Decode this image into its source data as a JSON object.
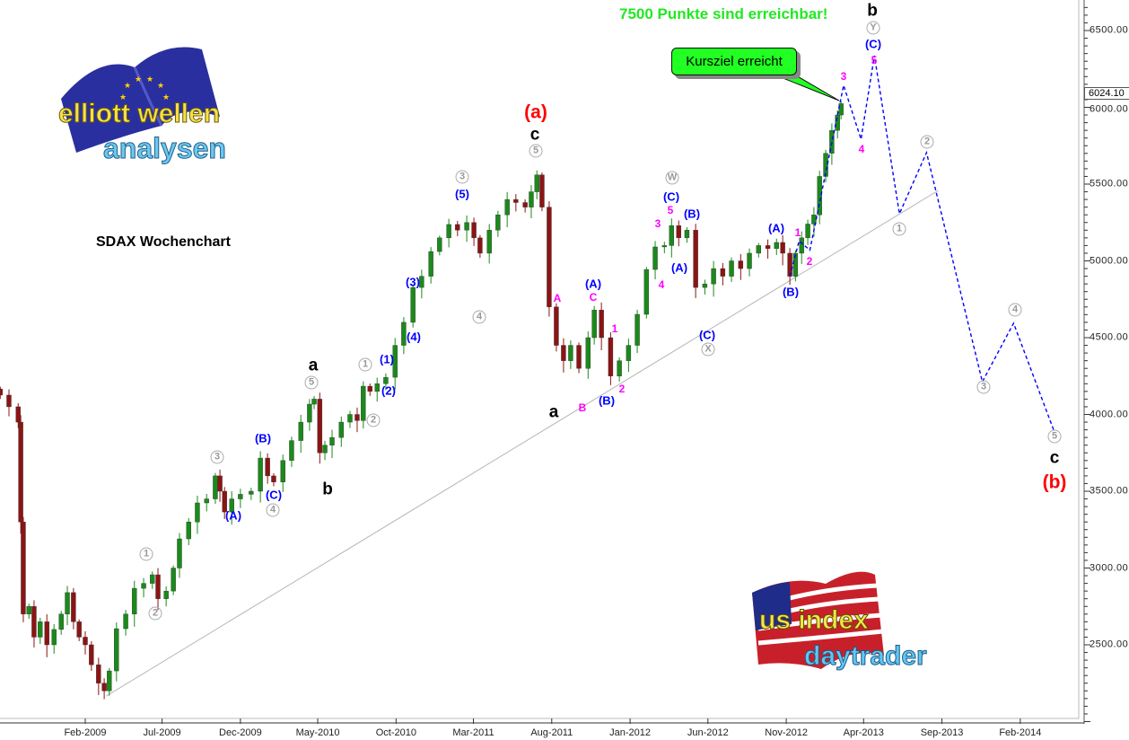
{
  "chart_data": {
    "type": "candlestick",
    "title": "SDAX Wochenchart",
    "headline": "7500 Punkte sind erreichbar!",
    "callout": "Kursziel erreicht",
    "last_price": "6024.10",
    "ylim": [
      2000,
      6700
    ],
    "y_ticks": [
      "6500.00",
      "6000.00",
      "5500.00",
      "5000.00",
      "4500.00",
      "4000.00",
      "3500.00",
      "3000.00",
      "2500.00"
    ],
    "y_tick_values": [
      6500,
      6000,
      5500,
      5000,
      4500,
      4000,
      3500,
      3000,
      2500
    ],
    "x_ticks": [
      "Feb-2009",
      "Jul-2009",
      "Dec-2009",
      "May-2010",
      "Oct-2010",
      "Mar-2011",
      "Aug-2011",
      "Jan-2012",
      "Jun-2012",
      "Nov-2012",
      "Apr-2013",
      "Sep-2013",
      "Feb-2014"
    ],
    "x_tick_dates": [
      "2009-02-01",
      "2009-07-01",
      "2009-12-01",
      "2010-05-01",
      "2010-10-01",
      "2011-03-01",
      "2011-08-01",
      "2012-01-01",
      "2012-06-01",
      "2012-11-01",
      "2013-04-01",
      "2013-09-01",
      "2014-02-01"
    ],
    "grid": false,
    "colors": {
      "up": "#1a8a1a",
      "down": "#8b1414",
      "projection": "#0000ff",
      "trendline": "#b8b8b8"
    },
    "closes": [
      [
        "2008-08-19",
        4126
      ],
      [
        "2008-09-05",
        4050
      ],
      [
        "2008-09-23",
        3950
      ],
      [
        "2008-09-28",
        3300
      ],
      [
        "2008-10-03",
        2700
      ],
      [
        "2008-10-14",
        2750
      ],
      [
        "2008-10-24",
        2550
      ],
      [
        "2008-11-05",
        2650
      ],
      [
        "2008-11-18",
        2500
      ],
      [
        "2008-12-02",
        2600
      ],
      [
        "2008-12-16",
        2700
      ],
      [
        "2008-12-28",
        2840
      ],
      [
        "2009-01-09",
        2650
      ],
      [
        "2009-01-20",
        2550
      ],
      [
        "2009-02-01",
        2500
      ],
      [
        "2009-02-13",
        2370
      ],
      [
        "2009-02-27",
        2250
      ],
      [
        "2009-03-10",
        2200
      ],
      [
        "2009-03-20",
        2330
      ],
      [
        "2009-04-03",
        2605
      ],
      [
        "2009-04-21",
        2700
      ],
      [
        "2009-05-08",
        2868
      ],
      [
        "2009-05-26",
        2900
      ],
      [
        "2009-06-12",
        2956
      ],
      [
        "2009-06-23",
        2800
      ],
      [
        "2009-07-09",
        2850
      ],
      [
        "2009-07-23",
        3000
      ],
      [
        "2009-08-04",
        3190
      ],
      [
        "2009-08-22",
        3300
      ],
      [
        "2009-09-08",
        3424
      ],
      [
        "2009-09-26",
        3450
      ],
      [
        "2009-10-13",
        3600
      ],
      [
        "2009-10-22",
        3500
      ],
      [
        "2009-10-31",
        3365
      ],
      [
        "2009-11-14",
        3450
      ],
      [
        "2009-12-01",
        3480
      ],
      [
        "2009-12-22",
        3500
      ],
      [
        "2010-01-09",
        3716
      ],
      [
        "2010-01-23",
        3600
      ],
      [
        "2010-02-04",
        3560
      ],
      [
        "2010-02-22",
        3700
      ],
      [
        "2010-03-11",
        3830
      ],
      [
        "2010-03-29",
        3950
      ],
      [
        "2010-04-15",
        4067
      ],
      [
        "2010-04-24",
        4100
      ],
      [
        "2010-05-05",
        3750
      ],
      [
        "2010-05-15",
        3800
      ],
      [
        "2010-05-29",
        3850
      ],
      [
        "2010-06-16",
        3950
      ],
      [
        "2010-07-03",
        4000
      ],
      [
        "2010-07-17",
        3960
      ],
      [
        "2010-07-29",
        4184
      ],
      [
        "2010-08-11",
        4150
      ],
      [
        "2010-08-25",
        4200
      ],
      [
        "2010-09-11",
        4242
      ],
      [
        "2010-09-29",
        4450
      ],
      [
        "2010-10-16",
        4600
      ],
      [
        "2010-11-03",
        4827
      ],
      [
        "2010-11-20",
        4900
      ],
      [
        "2010-12-08",
        5061
      ],
      [
        "2010-12-25",
        5150
      ],
      [
        "2011-01-12",
        5237
      ],
      [
        "2011-01-29",
        5200
      ],
      [
        "2011-02-16",
        5250
      ],
      [
        "2011-03-02",
        5150
      ],
      [
        "2011-03-14",
        5050
      ],
      [
        "2011-04-01",
        5200
      ],
      [
        "2011-04-18",
        5300
      ],
      [
        "2011-05-06",
        5400
      ],
      [
        "2011-05-23",
        5380
      ],
      [
        "2011-06-10",
        5350
      ],
      [
        "2011-06-22",
        5450
      ],
      [
        "2011-07-03",
        5560
      ],
      [
        "2011-07-13",
        5350
      ],
      [
        "2011-07-27",
        4700
      ],
      [
        "2011-08-10",
        4450
      ],
      [
        "2011-08-24",
        4350
      ],
      [
        "2011-09-07",
        4450
      ],
      [
        "2011-09-23",
        4300
      ],
      [
        "2011-10-11",
        4500
      ],
      [
        "2011-10-23",
        4680
      ],
      [
        "2011-11-06",
        4500
      ],
      [
        "2011-11-24",
        4250
      ],
      [
        "2011-12-11",
        4350
      ],
      [
        "2011-12-29",
        4450
      ],
      [
        "2012-01-15",
        4652
      ],
      [
        "2012-02-02",
        4944
      ],
      [
        "2012-02-19",
        5091
      ],
      [
        "2012-03-08",
        5100
      ],
      [
        "2012-03-22",
        5230
      ],
      [
        "2012-04-05",
        5150
      ],
      [
        "2012-04-21",
        5200
      ],
      [
        "2012-05-08",
        4827
      ],
      [
        "2012-05-26",
        4850
      ],
      [
        "2012-06-12",
        4950
      ],
      [
        "2012-06-30",
        4900
      ],
      [
        "2012-07-17",
        5000
      ],
      [
        "2012-08-04",
        4950
      ],
      [
        "2012-08-21",
        5050
      ],
      [
        "2012-09-08",
        5100
      ],
      [
        "2012-09-26",
        5080
      ],
      [
        "2012-10-13",
        5120
      ],
      [
        "2012-10-25",
        5050
      ],
      [
        "2012-11-08",
        4900
      ],
      [
        "2012-11-19",
        5050
      ],
      [
        "2012-12-01",
        5150
      ],
      [
        "2012-12-13",
        5240
      ],
      [
        "2012-12-25",
        5300
      ],
      [
        "2013-01-05",
        5550
      ],
      [
        "2013-01-17",
        5700
      ],
      [
        "2013-01-29",
        5850
      ],
      [
        "2013-02-09",
        5950
      ],
      [
        "2013-02-16",
        6024
      ]
    ],
    "projection": [
      [
        "2012-11-08",
        4900
      ],
      [
        "2012-11-26",
        5130
      ],
      [
        "2012-12-17",
        5070
      ],
      [
        "2013-02-21",
        6143
      ],
      [
        "2013-03-27",
        5792
      ],
      [
        "2013-04-22",
        6336
      ],
      [
        "2013-06-10",
        5307
      ],
      [
        "2013-08-02",
        5705
      ],
      [
        "2013-11-19",
        4213
      ],
      [
        "2014-01-19",
        4594
      ],
      [
        "2014-04-08",
        3892
      ]
    ],
    "trendline": [
      [
        "2009-03-14",
        2166
      ],
      [
        "2013-08-25",
        5459
      ]
    ]
  },
  "wave_labels": {
    "black": [
      "a",
      "b",
      "c",
      "a",
      "b",
      "c"
    ],
    "red": [
      "(a)",
      "(b)"
    ],
    "circled": [
      "1",
      "2",
      "3",
      "4",
      "5",
      "1",
      "2",
      "3",
      "4",
      "5",
      "W",
      "X",
      "Y",
      "1",
      "2",
      "3",
      "4",
      "5"
    ],
    "blue": [
      "(A)",
      "(B)",
      "(C)",
      "(1)",
      "(2)",
      "(3)",
      "(4)",
      "(5)",
      "(A)",
      "(B)",
      "(C)",
      "(B)",
      "(A)",
      "(C)",
      "(A)",
      "(B)",
      "(C)"
    ],
    "magenta": [
      "A",
      "C",
      "1",
      "2",
      "B",
      "3",
      "4",
      "5",
      "1",
      "2",
      "3",
      "4",
      "5"
    ]
  },
  "logos": {
    "top_left": "elliott wellen analysen",
    "bottom_right": "us index daytrader"
  }
}
